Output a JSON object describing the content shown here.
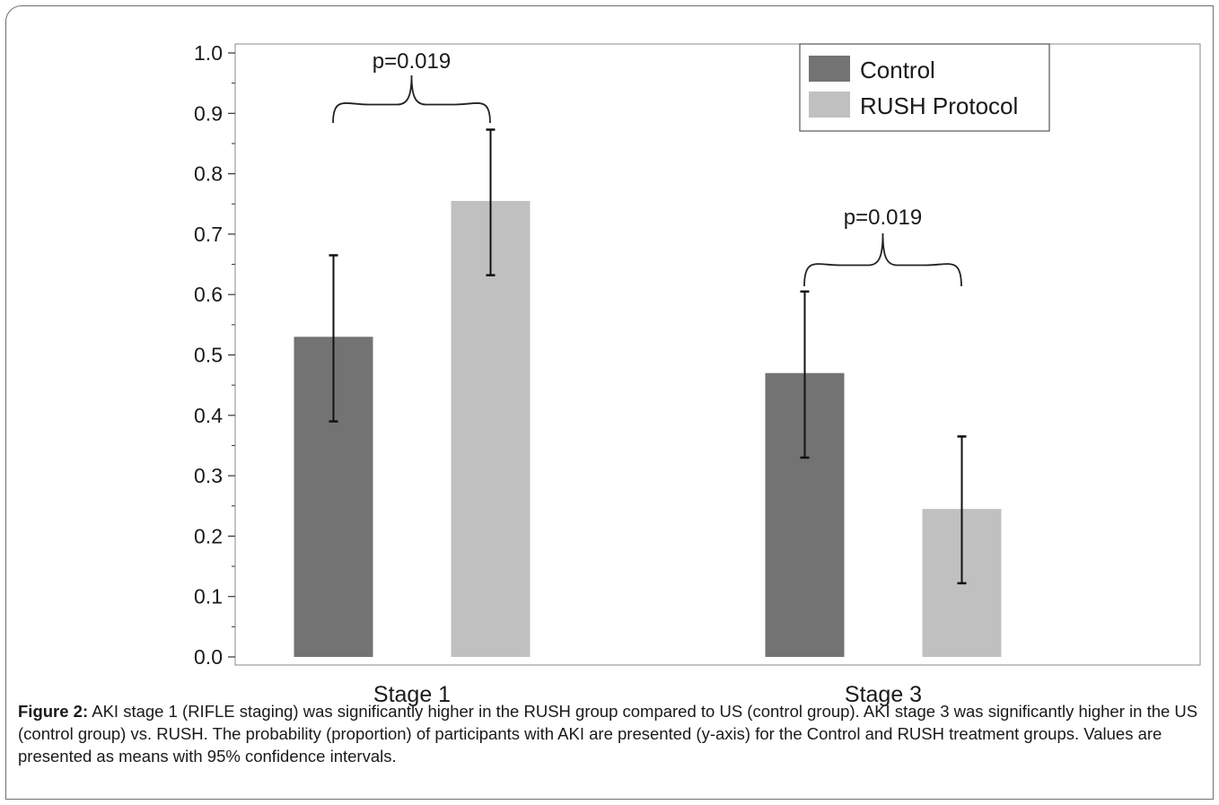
{
  "chart_data": {
    "type": "bar",
    "categories": [
      "Stage 1",
      "Stage 3"
    ],
    "series": [
      {
        "name": "Control",
        "color": "#737373",
        "values": [
          0.53,
          0.47
        ],
        "ci_low": [
          0.39,
          0.33
        ],
        "ci_high": [
          0.665,
          0.605
        ]
      },
      {
        "name": "RUSH Protocol",
        "color": "#c0c0c0",
        "values": [
          0.755,
          0.245
        ],
        "ci_low": [
          0.632,
          0.122
        ],
        "ci_high": [
          0.873,
          0.365
        ]
      }
    ],
    "yticks": [
      "0.0",
      "0.1",
      "0.2",
      "0.3",
      "0.4",
      "0.5",
      "0.6",
      "0.7",
      "0.8",
      "0.9",
      "1.0"
    ],
    "ylim": [
      0,
      1.0
    ],
    "legend_position": "top-right",
    "annotations": [
      {
        "label": "p=0.019",
        "category": "Stage 1"
      },
      {
        "label": "p=0.019",
        "category": "Stage 3"
      }
    ]
  },
  "caption": {
    "figure_label": "Figure 2:",
    "text": " AKI stage 1 (RIFLE staging) was significantly higher in the RUSH group compared to US (control group). AKI stage 3 was significantly higher in the US (control group) vs. RUSH. The probability (proportion) of participants with AKI are presented (y-axis) for the Control and RUSH treatment groups. Values are presented as means with 95% confidence intervals."
  }
}
